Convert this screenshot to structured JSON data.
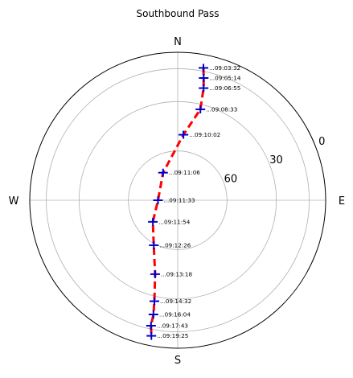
{
  "chart_data": {
    "type": "scatter",
    "projection": "polar",
    "title": "Southbound Pass",
    "theta_direction": "clockwise",
    "theta_zero": "north",
    "radial_axis": "elevation_deg",
    "rlim": [
      90,
      0
    ],
    "radial_ticks": [
      0,
      30,
      60
    ],
    "radial_tick_labels": [
      "0",
      "30",
      "60"
    ],
    "angular_ticks": [
      0,
      90,
      180,
      270
    ],
    "angular_tick_labels": [
      "N",
      "E",
      "S",
      "W"
    ],
    "grid": true,
    "series": [
      {
        "points": [
          {
            "time": "...09:03:32",
            "az": 11,
            "el": 8
          },
          {
            "time": "...09:05:14",
            "az": 12,
            "el": 14
          },
          {
            "time": "...09:06:55",
            "az": 13,
            "el": 20
          },
          {
            "time": "...09:08:33",
            "az": 14,
            "el": 33
          },
          {
            "time": "...09:10:02",
            "az": 5,
            "el": 50
          },
          {
            "time": "...09:11:06",
            "az": 332,
            "el": 71
          },
          {
            "time": "...09:11:33",
            "az": 270,
            "el": 78
          },
          {
            "time": "...09:11:54",
            "az": 229,
            "el": 70
          },
          {
            "time": "...09:12:26",
            "az": 208,
            "el": 59
          },
          {
            "time": "...09:13:18",
            "az": 197,
            "el": 43
          },
          {
            "time": "...09:14:32",
            "az": 193,
            "el": 27
          },
          {
            "time": "...09:16:04",
            "az": 192,
            "el": 19
          },
          {
            "time": "...09:17:43",
            "az": 192,
            "el": 12
          },
          {
            "time": "...09:19:25",
            "az": 191,
            "el": 6
          }
        ]
      }
    ]
  }
}
